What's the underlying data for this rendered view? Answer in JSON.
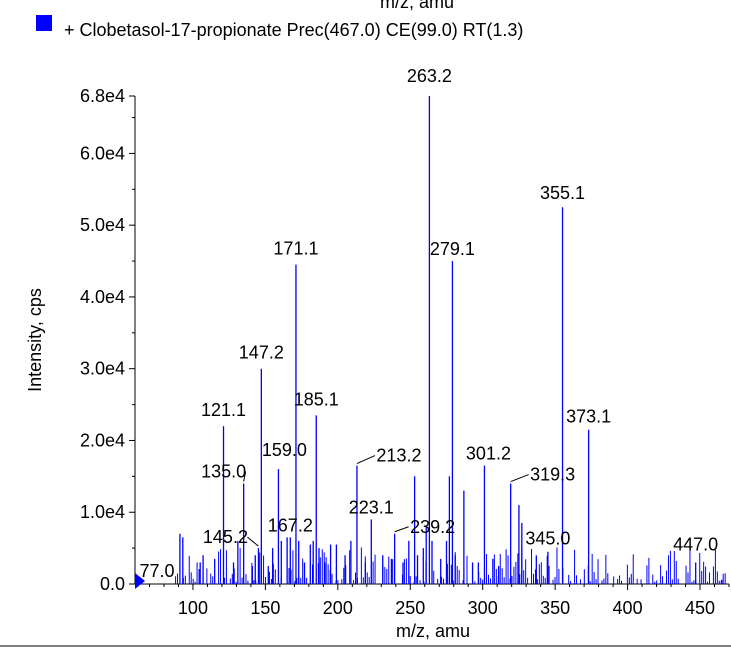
{
  "chart_data": {
    "type": "bar",
    "legend": "+ Clobetasol-17-propionate Prec(467.0) CE(99.0) RT(1.3)",
    "top_clipped_label": "m/z, amu",
    "xlabel": "m/z, amu",
    "ylabel": "Intensity, cps",
    "xlim": [
      60,
      470
    ],
    "ylim": [
      0,
      68000
    ],
    "x_ticks": [
      100,
      150,
      200,
      250,
      300,
      350,
      400,
      450
    ],
    "x_tick_labels": [
      "100",
      "150",
      "200",
      "250",
      "300",
      "350",
      "400",
      "450"
    ],
    "y_ticks": [
      0,
      10000,
      20000,
      30000,
      40000,
      50000,
      60000,
      68000
    ],
    "y_tick_labels": [
      "0.0",
      "1.0e4",
      "2.0e4",
      "3.0e4",
      "4.0e4",
      "5.0e4",
      "6.0e4",
      "6.8e4"
    ],
    "series_color": "#0000ff",
    "peaks": [
      {
        "x": 77.0,
        "y": 0,
        "label": "77.0"
      },
      {
        "x": 91.0,
        "y": 7000
      },
      {
        "x": 93.0,
        "y": 6500
      },
      {
        "x": 105.0,
        "y": 3000
      },
      {
        "x": 107.0,
        "y": 4000
      },
      {
        "x": 115.0,
        "y": 3500
      },
      {
        "x": 121.1,
        "y": 22000,
        "label": "121.1"
      },
      {
        "x": 128.0,
        "y": 3000
      },
      {
        "x": 131.0,
        "y": 6000
      },
      {
        "x": 135.0,
        "y": 14000,
        "label": "135.0"
      },
      {
        "x": 141.0,
        "y": 2500
      },
      {
        "x": 143.0,
        "y": 4000
      },
      {
        "x": 145.2,
        "y": 5000,
        "label": "145.2"
      },
      {
        "x": 147.2,
        "y": 30000,
        "label": "147.2"
      },
      {
        "x": 152.0,
        "y": 2500
      },
      {
        "x": 155.0,
        "y": 5000
      },
      {
        "x": 159.0,
        "y": 16000,
        "label": "159.0"
      },
      {
        "x": 161.0,
        "y": 6000
      },
      {
        "x": 165.0,
        "y": 6500
      },
      {
        "x": 167.2,
        "y": 6500,
        "label": "167.2"
      },
      {
        "x": 171.1,
        "y": 44500,
        "label": "171.1"
      },
      {
        "x": 173.0,
        "y": 6000
      },
      {
        "x": 177.0,
        "y": 3000
      },
      {
        "x": 181.0,
        "y": 5500
      },
      {
        "x": 183.0,
        "y": 6000
      },
      {
        "x": 185.1,
        "y": 23500,
        "label": "185.1"
      },
      {
        "x": 187.0,
        "y": 5000
      },
      {
        "x": 191.0,
        "y": 3000
      },
      {
        "x": 195.0,
        "y": 5500
      },
      {
        "x": 199.0,
        "y": 5500
      },
      {
        "x": 205.0,
        "y": 4000
      },
      {
        "x": 209.0,
        "y": 6000
      },
      {
        "x": 213.2,
        "y": 16500,
        "label": "213.2"
      },
      {
        "x": 219.0,
        "y": 3000
      },
      {
        "x": 223.1,
        "y": 9000,
        "label": "223.1"
      },
      {
        "x": 231.0,
        "y": 4000
      },
      {
        "x": 237.0,
        "y": 3500
      },
      {
        "x": 239.2,
        "y": 7000,
        "label": "239.2"
      },
      {
        "x": 245.0,
        "y": 3000
      },
      {
        "x": 249.0,
        "y": 6000
      },
      {
        "x": 253.0,
        "y": 15000
      },
      {
        "x": 255.0,
        "y": 4000
      },
      {
        "x": 259.0,
        "y": 5000
      },
      {
        "x": 261.0,
        "y": 8000
      },
      {
        "x": 263.2,
        "y": 68000,
        "label": "263.2"
      },
      {
        "x": 265.0,
        "y": 6000
      },
      {
        "x": 271.0,
        "y": 3500
      },
      {
        "x": 275.0,
        "y": 6000
      },
      {
        "x": 277.0,
        "y": 15000
      },
      {
        "x": 279.1,
        "y": 45000,
        "label": "279.1"
      },
      {
        "x": 281.0,
        "y": 4000
      },
      {
        "x": 287.0,
        "y": 13000
      },
      {
        "x": 293.0,
        "y": 3000
      },
      {
        "x": 297.0,
        "y": 3000
      },
      {
        "x": 301.2,
        "y": 16500,
        "label": "301.2"
      },
      {
        "x": 307.0,
        "y": 3500
      },
      {
        "x": 311.0,
        "y": 2500
      },
      {
        "x": 319.3,
        "y": 14000,
        "label": "319.3"
      },
      {
        "x": 325.0,
        "y": 11000
      },
      {
        "x": 327.0,
        "y": 8500
      },
      {
        "x": 337.0,
        "y": 4000
      },
      {
        "x": 345.0,
        "y": 4500,
        "label": "345.0"
      },
      {
        "x": 355.1,
        "y": 52500,
        "label": "355.1"
      },
      {
        "x": 373.1,
        "y": 21500,
        "label": "373.1"
      },
      {
        "x": 447.0,
        "y": 3000,
        "label": "447.0"
      },
      {
        "x": 465.0,
        "y": 600
      }
    ]
  }
}
